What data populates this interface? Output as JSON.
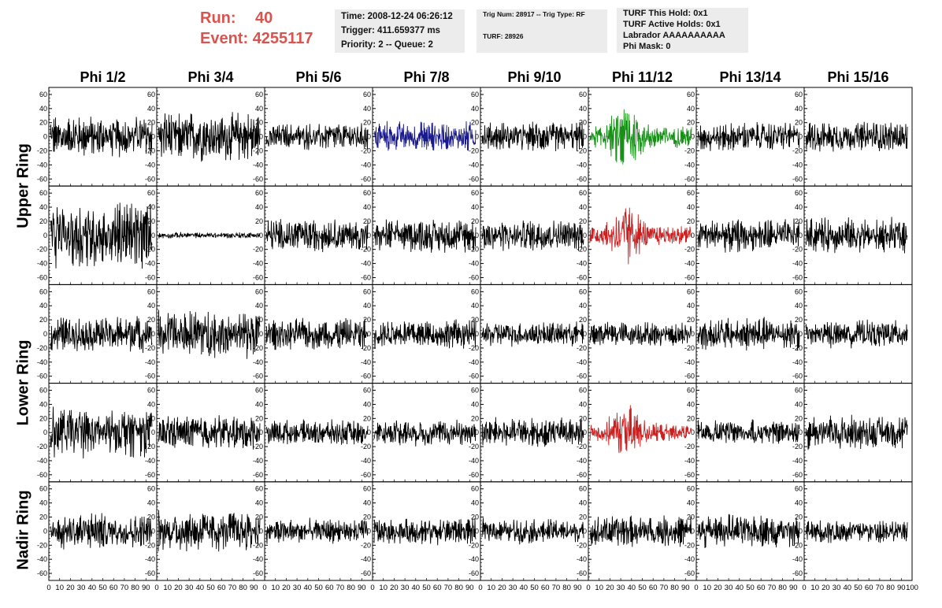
{
  "header": {
    "run_label": "Run:",
    "run_value": "40",
    "event_label": "Event:",
    "event_value": "4255117"
  },
  "info1": {
    "line1": "Time: 2008-12-24 06:26:12",
    "line2": "Trigger: 411.659377 ms",
    "line3": "Priority: 2 -- Queue: 2"
  },
  "info2": {
    "line1": "Trig Num: 28917 -- Trig Type: RF",
    "line2": "TURF: 28926"
  },
  "info3": {
    "line1": "TURF This Hold: 0x1",
    "line2": "TURF Active Holds: 0x1",
    "line3": "Labrador AAAAAAAAAA",
    "line4": "Phi Mask: 0"
  },
  "row_labels": {
    "upper": "Upper Ring",
    "lower": "Lower Ring",
    "nadir": "Nadir Ring"
  },
  "colors": {
    "header_red": "#d9534f",
    "trace_default": "#000000",
    "trace_blue": "#1a1a8c",
    "trace_green": "#169116",
    "trace_red": "#cc1f1f"
  },
  "chart_data": {
    "type": "line",
    "columns": [
      "Phi 1/2",
      "Phi 3/4",
      "Phi 5/6",
      "Phi 7/8",
      "Phi 9/10",
      "Phi 11/12",
      "Phi 13/14",
      "Phi 15/16"
    ],
    "ylim": [
      -70,
      70
    ],
    "yticks": [
      -60,
      -40,
      -20,
      0,
      20,
      40,
      60
    ],
    "xlim": [
      0,
      100
    ],
    "xticks": [
      0,
      10,
      20,
      30,
      40,
      50,
      60,
      70,
      80,
      90,
      100
    ],
    "grid": false,
    "rows": [
      {
        "label": "Upper Ring",
        "amplitude": [
          20,
          24,
          13,
          15,
          14,
          18,
          14,
          15
        ],
        "color": [
          "black",
          "black",
          "black",
          "blue",
          "black",
          "green",
          "black",
          "black"
        ]
      },
      {
        "label": "Upper Ring",
        "amplitude": [
          34,
          3,
          16,
          16,
          15,
          16,
          16,
          17
        ],
        "color": [
          "black",
          "black",
          "black",
          "black",
          "black",
          "red",
          "black",
          "black"
        ]
      },
      {
        "label": "Lower Ring",
        "amplitude": [
          17,
          24,
          15,
          14,
          12,
          12,
          16,
          13
        ],
        "color": [
          "black",
          "black",
          "black",
          "black",
          "black",
          "black",
          "black",
          "black"
        ]
      },
      {
        "label": "Lower Ring",
        "amplitude": [
          24,
          17,
          12,
          13,
          15,
          14,
          12,
          17
        ],
        "color": [
          "black",
          "black",
          "black",
          "black",
          "black",
          "red",
          "black",
          "black"
        ]
      },
      {
        "label": "Nadir Ring",
        "amplitude": [
          18,
          20,
          12,
          13,
          12,
          15,
          16,
          12
        ],
        "color": [
          "black",
          "black",
          "black",
          "black",
          "black",
          "black",
          "black",
          "black"
        ]
      }
    ]
  }
}
